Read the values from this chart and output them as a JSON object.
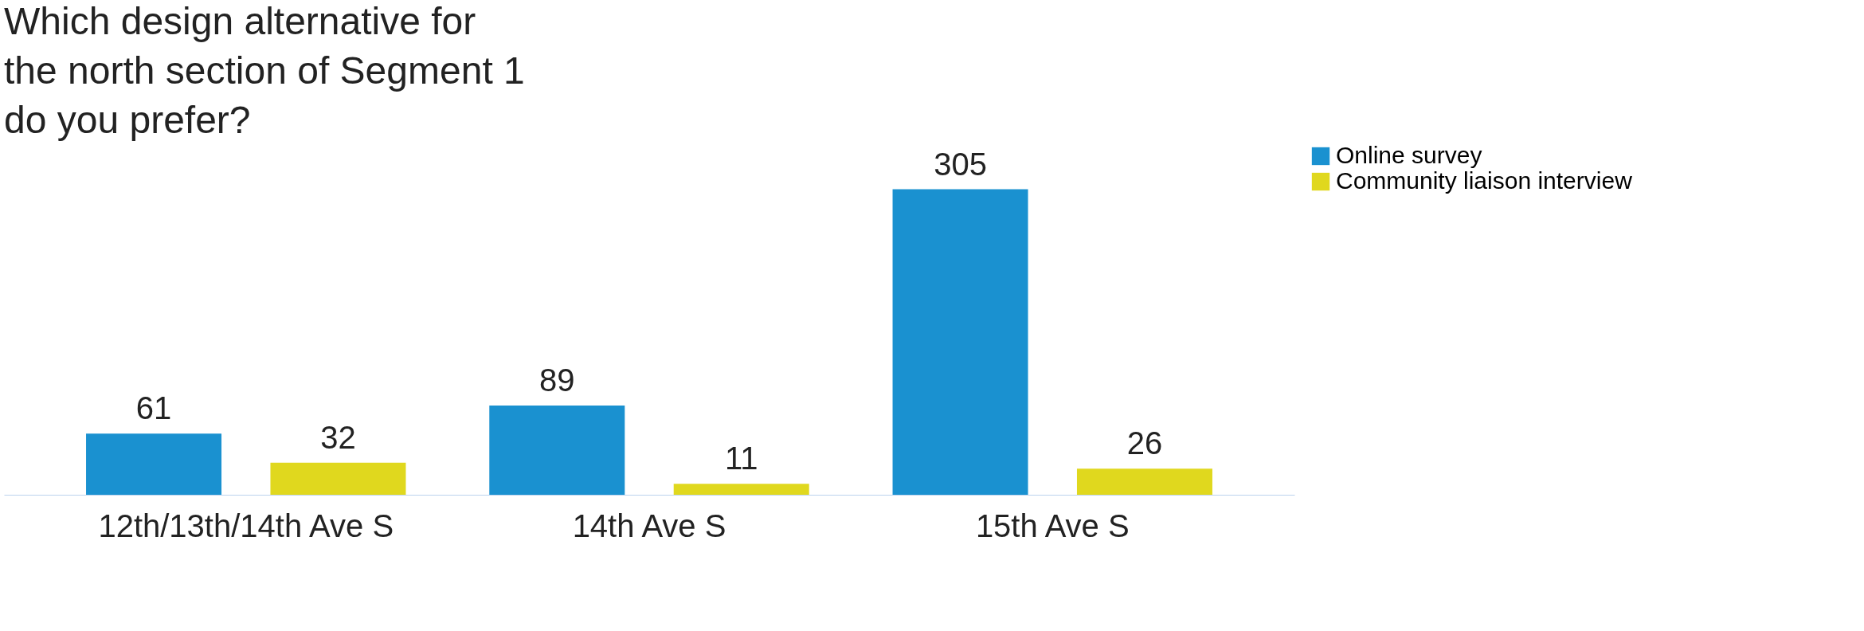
{
  "chart_data": {
    "type": "bar",
    "title": "Which design alternative for the north section of Segment 1 do you prefer?",
    "categories": [
      "12th/13th/14th Ave S",
      "14th Ave S",
      "15th Ave S"
    ],
    "series": [
      {
        "name": "Online survey",
        "color": "#1a91d0",
        "values": [
          61,
          89,
          305
        ]
      },
      {
        "name": "Community liaison interview",
        "color": "#e0d81e",
        "values": [
          32,
          11,
          26
        ]
      }
    ],
    "data_labels": true,
    "legend": "right",
    "grid": false
  }
}
